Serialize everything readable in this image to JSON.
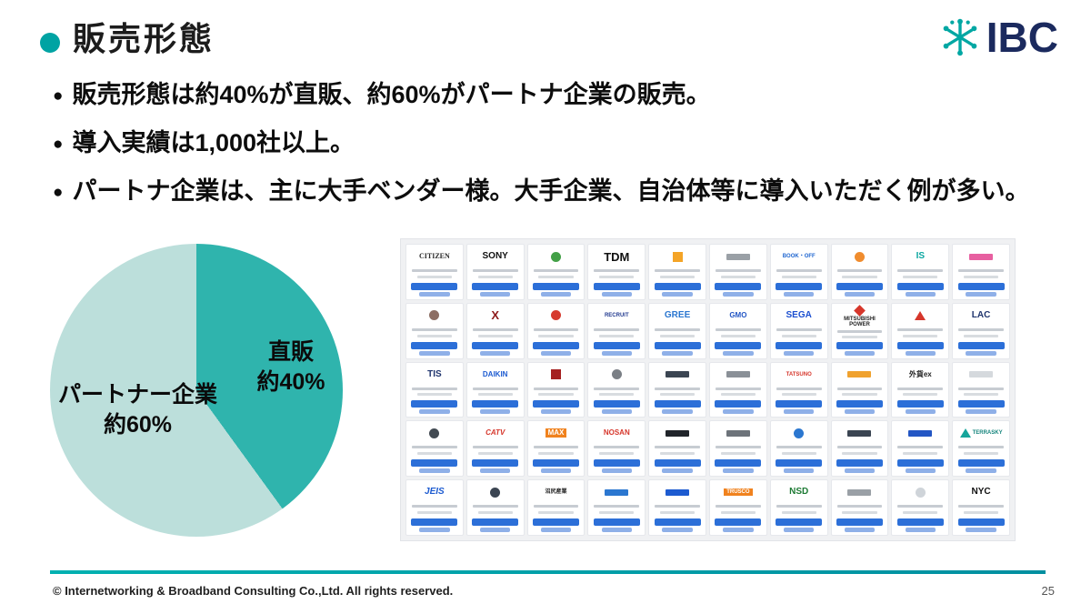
{
  "title": "販売形態",
  "brand": "IBC",
  "bullets": [
    "販売形態は約40%が直販、約60%がパートナ企業の販売。",
    "導入実績は1,000社以上。",
    "パートナ企業は、主に大手ベンダー様。大手企業、自治体等に導入いただく例が多い。"
  ],
  "chart_data": {
    "type": "pie",
    "labels": [
      "直販",
      "パートナー企業"
    ],
    "values": [
      40,
      60
    ],
    "slices": [
      {
        "label": "直販",
        "value_label": "約40%",
        "value": 40,
        "color": "#2fb4ad"
      },
      {
        "label": "パートナー企業",
        "value_label": "約60%",
        "value": 60,
        "color": "#bcdfdb"
      }
    ],
    "start_angle_deg": 0,
    "direction": "clockwise",
    "legend": "none"
  },
  "partner_grid": {
    "cards": [
      {
        "logo": "CITIZEN",
        "color": "#2b2b2b",
        "serif": true,
        "size": "xs"
      },
      {
        "logo": "SONY",
        "color": "#111111",
        "size": "sm"
      },
      {
        "mark": "circle",
        "markColor": "#43a047"
      },
      {
        "logo": "TDM",
        "color": "#111111",
        "size": "lg"
      },
      {
        "mark": "square",
        "markColor": "#f4a427"
      },
      {
        "mark": "bar",
        "markColor": "#9aa0a6"
      },
      {
        "logo": "BOOK・OFF",
        "color": "#1f66d0",
        "size": "xxs"
      },
      {
        "mark": "circle",
        "markColor": "#f08c2e"
      },
      {
        "logo": "IS",
        "color": "#0aa6a0",
        "size": "sm"
      },
      {
        "mark": "bar",
        "markColor": "#e75fa0"
      },
      {
        "mark": "circle",
        "markColor": "#8d6e63"
      },
      {
        "logo": "X",
        "color": "#8e1b1b",
        "size": "lg"
      },
      {
        "mark": "circle",
        "markColor": "#d63b2f"
      },
      {
        "logo": "RECRUIT",
        "color": "#223a8f",
        "size": "xxs"
      },
      {
        "logo": "GREE",
        "color": "#2b77d0",
        "size": "sm"
      },
      {
        "logo": "GMO",
        "color": "#2356c4",
        "size": "xs"
      },
      {
        "logo": "SEGA",
        "color": "#1c4fd0",
        "size": "sm"
      },
      {
        "logo": "MITSUBISHI POWER",
        "color": "#222222",
        "size": "xxs",
        "mark": "diamond",
        "markColor": "#d6362b"
      },
      {
        "mark": "triangle",
        "markColor": "#d6362b"
      },
      {
        "logo": "LAC",
        "color": "#20356e",
        "size": "sm"
      },
      {
        "logo": "TIS",
        "color": "#20356e",
        "size": "sm"
      },
      {
        "logo": "DAIKIN",
        "color": "#1d5bd0",
        "size": "xs"
      },
      {
        "mark": "square",
        "markColor": "#a52020"
      },
      {
        "mark": "circle",
        "markColor": "#7a7f85"
      },
      {
        "mark": "bar",
        "markColor": "#3b4552"
      },
      {
        "mark": "bar",
        "markColor": "#8a9097"
      },
      {
        "logo": "TATSUNO",
        "color": "#d6362b",
        "size": "xxs"
      },
      {
        "mark": "bar",
        "markColor": "#f0a22e"
      },
      {
        "logo": "外貨ex",
        "color": "#222222",
        "size": "xs"
      },
      {
        "mark": "bar",
        "markColor": "#d5d9dd"
      },
      {
        "mark": "circle",
        "markColor": "#424a52"
      },
      {
        "logo": "CATV",
        "color": "#d6362b",
        "size": "xs",
        "italic": true
      },
      {
        "logo": "MAX",
        "color": "#ffffff",
        "bg": "#f0821e",
        "size": "xs"
      },
      {
        "logo": "NOSAN",
        "color": "#d6362b",
        "size": "xs"
      },
      {
        "mark": "bar",
        "markColor": "#20242a"
      },
      {
        "mark": "bar",
        "markColor": "#6d737a"
      },
      {
        "mark": "circle",
        "markColor": "#2b77d0"
      },
      {
        "mark": "bar",
        "markColor": "#3b4552"
      },
      {
        "mark": "bar",
        "markColor": "#2356c4"
      },
      {
        "logo": "TERRASKY",
        "color": "#16857d",
        "size": "xxs",
        "mark": "triangle",
        "markColor": "#16a59b"
      },
      {
        "logo": "JEIS",
        "color": "#1d5bd0",
        "size": "sm",
        "italic": true
      },
      {
        "mark": "circle",
        "markColor": "#3b4552"
      },
      {
        "logo": "沼尻産業",
        "color": "#222222",
        "size": "xxs"
      },
      {
        "mark": "bar",
        "markColor": "#2b77d0"
      },
      {
        "mark": "bar",
        "markColor": "#1d5bd0"
      },
      {
        "logo": "TRUSCO",
        "color": "#ffffff",
        "bg": "#f0821e",
        "size": "xxs"
      },
      {
        "logo": "NSD",
        "color": "#1d7a34",
        "size": "sm"
      },
      {
        "mark": "bar",
        "markColor": "#9aa0a6"
      },
      {
        "mark": "circle",
        "markColor": "#cfd4d9"
      },
      {
        "logo": "NYC",
        "color": "#111111",
        "size": "sm"
      }
    ]
  },
  "footer": {
    "copyright": "© Internetworking & Broadband Consulting Co.,Ltd. All rights reserved.",
    "page_number": "25"
  },
  "colors": {
    "accent_teal": "#00a9ad",
    "title_dot_teal": "#00a3a3",
    "brand_navy": "#1b2a5e",
    "badge_blue": "#2c6fd8",
    "pie_dark_teal": "#2fb4ad",
    "pie_light_teal": "#bcdfdb"
  }
}
